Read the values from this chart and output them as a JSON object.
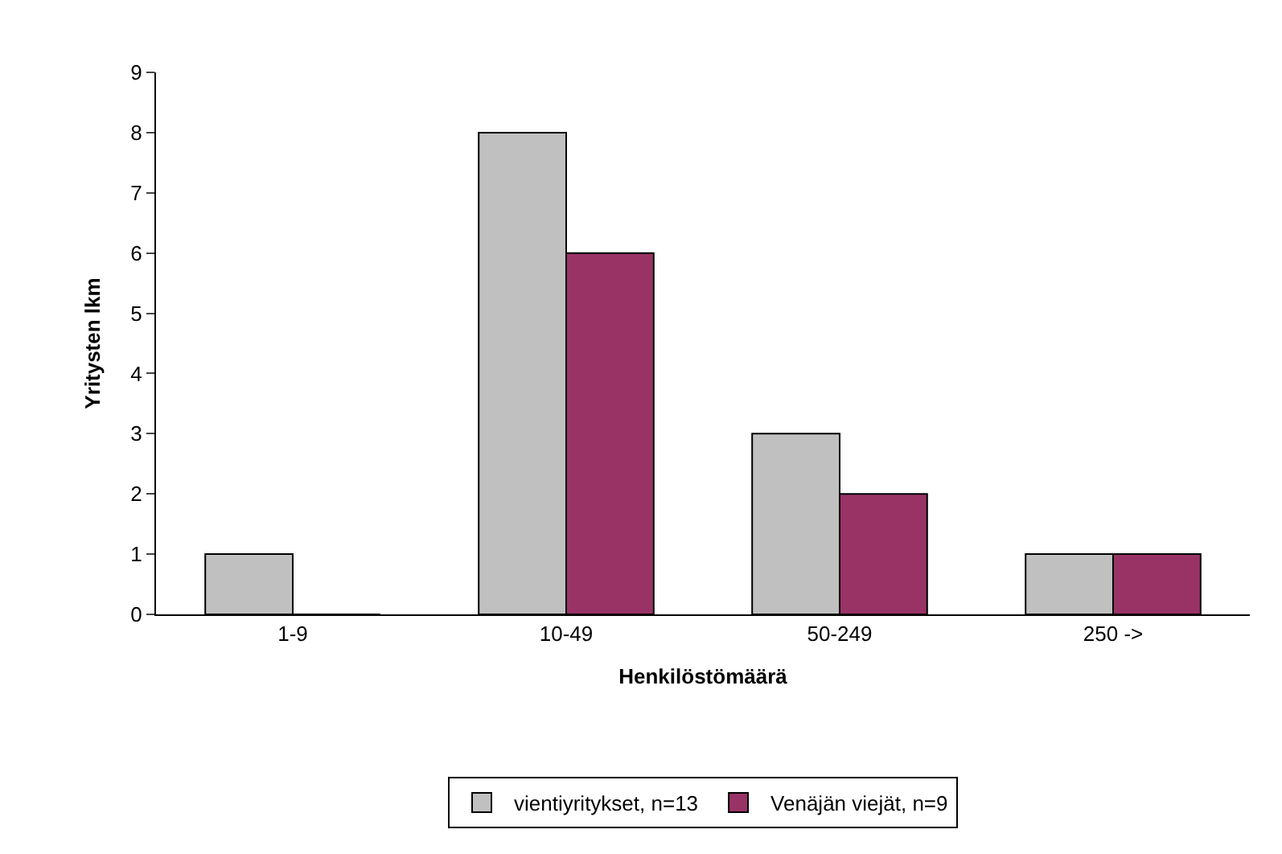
{
  "chart_data": {
    "type": "bar",
    "xlabel": "Henkilöstömäärä",
    "ylabel": "Yritysten lkm",
    "categories": [
      "1-9",
      "10-49",
      "50-249",
      "250 ->"
    ],
    "series": [
      {
        "name": "vientiyritykset, n=13",
        "color": "#c0c0c0",
        "values": [
          1,
          8,
          3,
          1
        ]
      },
      {
        "name": "Venäjän viejät, n=9",
        "color": "#993366",
        "values": [
          0,
          6,
          2,
          1
        ]
      }
    ],
    "ylim": [
      0,
      9
    ],
    "yticks": [
      0,
      1,
      2,
      3,
      4,
      5,
      6,
      7,
      8,
      9
    ],
    "grid": false,
    "legend": "bottom"
  }
}
